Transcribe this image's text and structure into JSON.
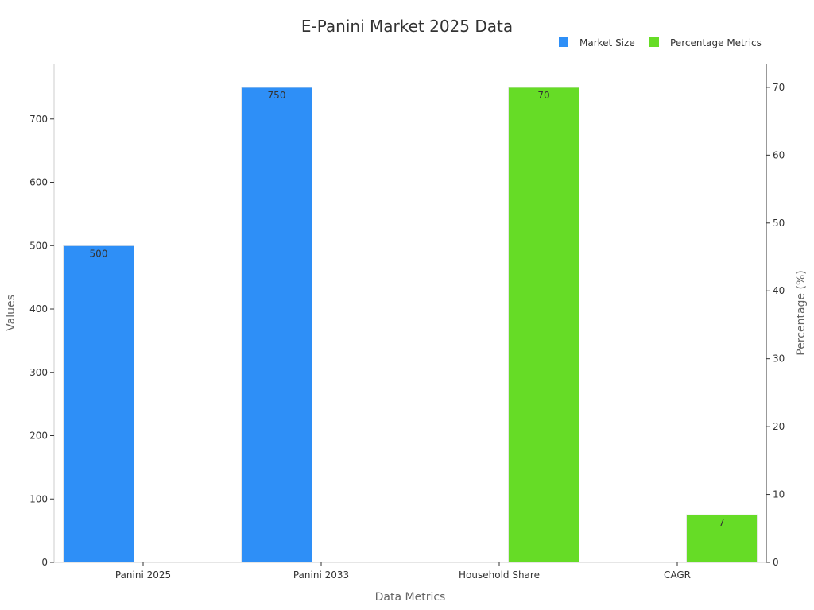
{
  "chart_data": {
    "type": "bar",
    "title": "E-Panini Market 2025 Data",
    "xlabel": "Data Metrics",
    "ylabel": "Values",
    "y2label": "Percentage (%)",
    "categories": [
      "Panini 2025",
      "Panini 2033",
      "Household Share",
      "CAGR"
    ],
    "ylim": [
      0,
      787.5
    ],
    "y_ticks": [
      0,
      100,
      200,
      300,
      400,
      500,
      600,
      700
    ],
    "y2lim": [
      0,
      73.5
    ],
    "y2_ticks": [
      0,
      10,
      20,
      30,
      40,
      50,
      60,
      70
    ],
    "legend_position": "top-right",
    "grid": false,
    "series": [
      {
        "name": "Market Size",
        "axis": "left",
        "color": "#2e8ff7",
        "values": [
          500,
          750,
          null,
          null
        ],
        "labels": [
          "500",
          "750",
          "",
          ""
        ]
      },
      {
        "name": "Percentage Metrics",
        "axis": "right",
        "color": "#66dc26",
        "values": [
          null,
          null,
          70,
          7
        ],
        "labels": [
          "",
          "",
          "70",
          "7"
        ]
      }
    ]
  }
}
